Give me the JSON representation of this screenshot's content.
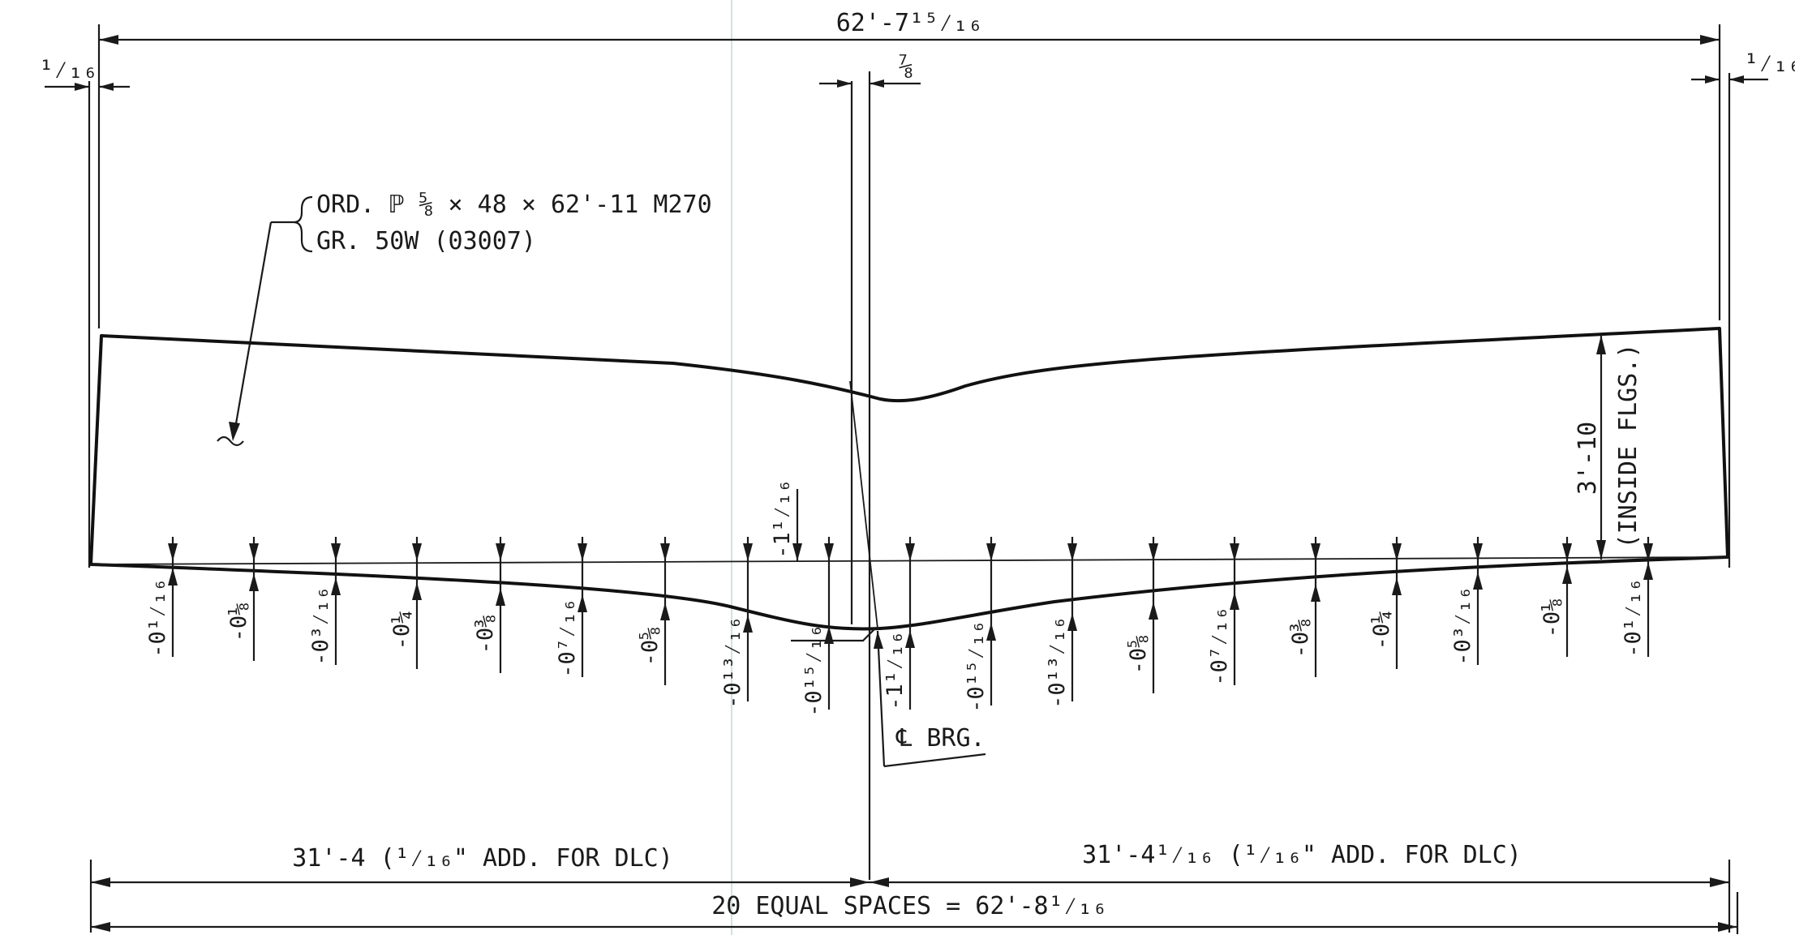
{
  "drawing": {
    "overall_length": "62'-7¹⁵⁄₁₆",
    "end_offset_left": "¹⁄₁₆",
    "end_offset_right": "¹⁄₁₆",
    "bearing_offset": "⅞",
    "plate_callout_line1": "ORD. ℙ ⅝  × 48 × 62'-11 M270",
    "plate_callout_line2": "GR. 50W (03007)",
    "web_depth": "3'-10",
    "web_depth_note": "(INSIDE FLGS.)",
    "bearing_label": "℄ BRG.",
    "left_half_dim": "31'-4 (¹⁄₁₆\" ADD. FOR DLC)",
    "right_half_dim": "31'-4¹⁄₁₆  (¹⁄₁₆\" ADD. FOR DLC)",
    "total_spaces_dim": "20 EQUAL SPACES = 62'-8¹⁄₁₆",
    "peak_camber_above": "-1¹⁄₁₆",
    "camber_left": [
      "-0¹⁄₁₆",
      "-0⅛",
      "-0³⁄₁₆",
      "-0¼",
      "-0⅜",
      "-0⁷⁄₁₆",
      "-0⅝",
      "-0¹³⁄₁₆",
      "-0¹⁵⁄₁₆"
    ],
    "camber_center": "-1¹⁄₁₆",
    "camber_right": [
      "-0¹⁵⁄₁₆",
      "-0¹³⁄₁₆",
      "-0⅝",
      "-0⁷⁄₁₆",
      "-0⅜",
      "-0¼",
      "-0³⁄₁₆",
      "-0⅛",
      "-0¹⁄₁₆"
    ]
  }
}
